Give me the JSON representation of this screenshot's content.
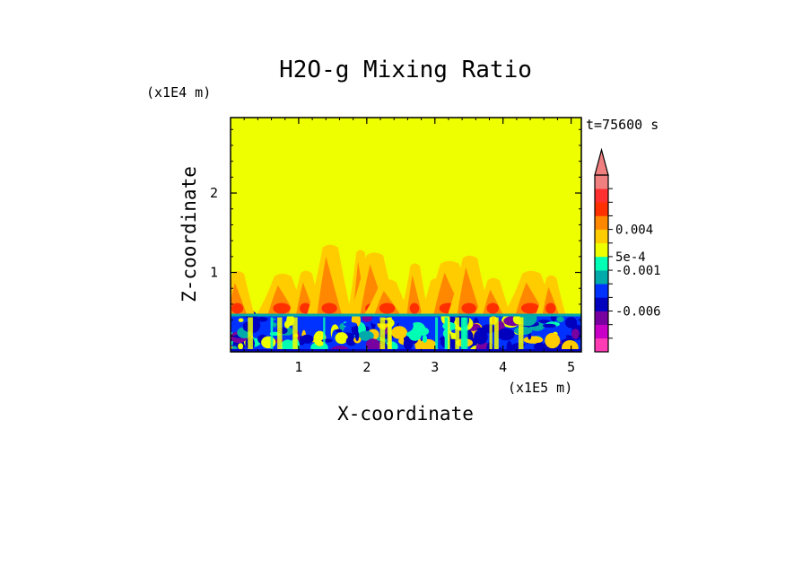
{
  "chart_data": {
    "type": "heatmap",
    "title": "H2O-g Mixing Ratio",
    "xlabel": "X-coordinate",
    "ylabel": "Z-coordinate",
    "x_unit": "(x1E5 m)",
    "y_unit": "(x1E4 m)",
    "time_label": "t=75600 s",
    "xlim": [
      0,
      5.15
    ],
    "ylim": [
      0,
      2.95
    ],
    "x_ticks": [
      1,
      2,
      3,
      4,
      5
    ],
    "y_ticks": [
      1,
      2
    ],
    "x_tick_labels": [
      "1",
      "2",
      "3",
      "4",
      "5"
    ],
    "y_tick_labels": [
      "1",
      "2"
    ],
    "background_color": "#eeff00",
    "boundary_layer_top": 0.48,
    "colorbar": {
      "levels": [
        {
          "color": "#ff3cb4"
        },
        {
          "color": "#c800c8"
        },
        {
          "color": "#7800a0"
        },
        {
          "color": "#0000be"
        },
        {
          "color": "#0032ff"
        },
        {
          "color": "#00aaaa"
        },
        {
          "color": "#00ffb4"
        },
        {
          "color": "#eeff00"
        },
        {
          "color": "#ffcc00"
        },
        {
          "color": "#ff8800"
        },
        {
          "color": "#ff3000"
        },
        {
          "color": "#ff3030"
        },
        {
          "color": "#f08080"
        }
      ],
      "tick_labels": [
        "-0.006",
        "-0.001",
        "5e-4",
        "0.004"
      ],
      "extend": "max"
    }
  }
}
